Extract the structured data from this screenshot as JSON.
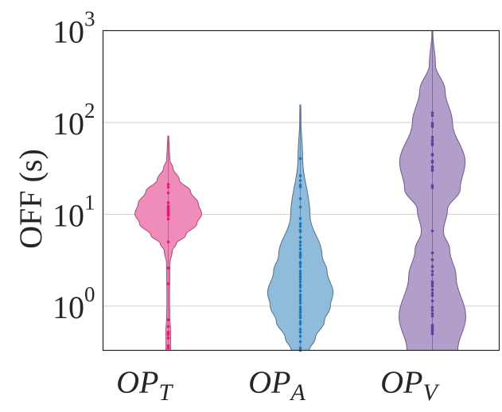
{
  "chart_data": {
    "type": "violin",
    "title": "",
    "xlabel": "",
    "ylabel": "OFF (s)",
    "yscale": "log",
    "ylim": [
      0.33,
      1000
    ],
    "grid": true,
    "yticks": [
      {
        "value": 1,
        "base": "10",
        "exp": "0"
      },
      {
        "value": 10,
        "base": "10",
        "exp": "1"
      },
      {
        "value": 100,
        "base": "10",
        "exp": "2"
      },
      {
        "value": 1000,
        "base": "10",
        "exp": "3"
      }
    ],
    "categories": [
      {
        "base": "OP",
        "sub": "T"
      },
      {
        "base": "OP",
        "sub": "A"
      },
      {
        "base": "OP",
        "sub": "V"
      }
    ],
    "series": [
      {
        "name": "OP_T",
        "fill": "#f08cba",
        "edge": "#a0506f",
        "point_color": "#e6197a",
        "density_profile": [
          [
            71,
            0
          ],
          [
            53,
            0.03
          ],
          [
            39,
            0.05
          ],
          [
            32,
            0.14
          ],
          [
            23.8,
            0.33
          ],
          [
            17.7,
            0.67
          ],
          [
            13.1,
            0.9
          ],
          [
            10.1,
            1.0
          ],
          [
            7.9,
            0.86
          ],
          [
            5.9,
            0.52
          ],
          [
            4.8,
            0.24
          ],
          [
            4.0,
            0.12
          ],
          [
            2.9,
            0.05
          ],
          [
            1.2,
            0.04
          ],
          [
            0.73,
            0.05
          ],
          [
            0.54,
            0.07
          ],
          [
            0.33,
            0.07
          ]
        ],
        "points": [
          21.2,
          19.8,
          17.1,
          13.4,
          12.3,
          11.8,
          11.4,
          10.9,
          10.5,
          10.1,
          9.7,
          8.9,
          5.0,
          2.6,
          1.75,
          0.71,
          0.6,
          0.52,
          0.49,
          0.45,
          0.37,
          0.35
        ]
      },
      {
        "name": "OP_A",
        "fill": "#8fbcdb",
        "edge": "#5a6f86",
        "point_color": "#1f77b4",
        "density_profile": [
          [
            155,
            0
          ],
          [
            106,
            0.02
          ],
          [
            41,
            0.07
          ],
          [
            9.7,
            0.29
          ],
          [
            3.6,
            0.65
          ],
          [
            2.4,
            0.8
          ],
          [
            1.4,
            0.98
          ],
          [
            1.0,
            0.9
          ],
          [
            0.68,
            0.72
          ],
          [
            0.45,
            0.45
          ],
          [
            0.33,
            0.27
          ]
        ],
        "points": [
          40.5,
          26.3,
          23.3,
          20.8,
          19.9,
          14.8,
          12.0,
          9.0,
          7.9,
          7.4,
          6.7,
          6.5,
          5.6,
          5.0,
          4.6,
          4.2,
          3.8,
          3.6,
          3.4,
          3.0,
          2.9,
          2.7,
          2.4,
          2.25,
          2.1,
          1.97,
          1.84,
          1.7,
          1.61,
          1.46,
          1.32,
          1.24,
          1.16,
          1.08,
          0.98,
          0.92,
          0.86,
          0.8,
          0.75,
          0.68,
          0.64,
          0.56,
          0.52,
          0.47,
          0.41,
          0.35,
          0.33
        ]
      },
      {
        "name": "OP_V",
        "fill": "#b29ecb",
        "edge": "#6f5a8a",
        "point_color": "#6a3d9a",
        "density_profile": [
          [
            1000,
            0
          ],
          [
            951,
            0.01
          ],
          [
            429,
            0.09
          ],
          [
            222,
            0.38
          ],
          [
            100,
            0.6
          ],
          [
            37,
            0.98
          ],
          [
            18.7,
            0.83
          ],
          [
            11.2,
            0.45
          ],
          [
            6.5,
            0.33
          ],
          [
            4.1,
            0.52
          ],
          [
            2.09,
            0.71
          ],
          [
            0.77,
            1.0
          ],
          [
            0.33,
            0.76
          ]
        ],
        "points": [
          127,
          119,
          98,
          94,
          90,
          69,
          64,
          60,
          57,
          45,
          44,
          38,
          37,
          33,
          32,
          30,
          20.6,
          19.5,
          6.6,
          3.8,
          3.2,
          2.7,
          2.4,
          2.2,
          1.84,
          1.75,
          1.65,
          1.51,
          1.39,
          1.3,
          1.14,
          0.97,
          0.9,
          0.83,
          0.78,
          0.62,
          0.6,
          0.58,
          0.56,
          0.54,
          0.52,
          0.5
        ]
      }
    ]
  }
}
